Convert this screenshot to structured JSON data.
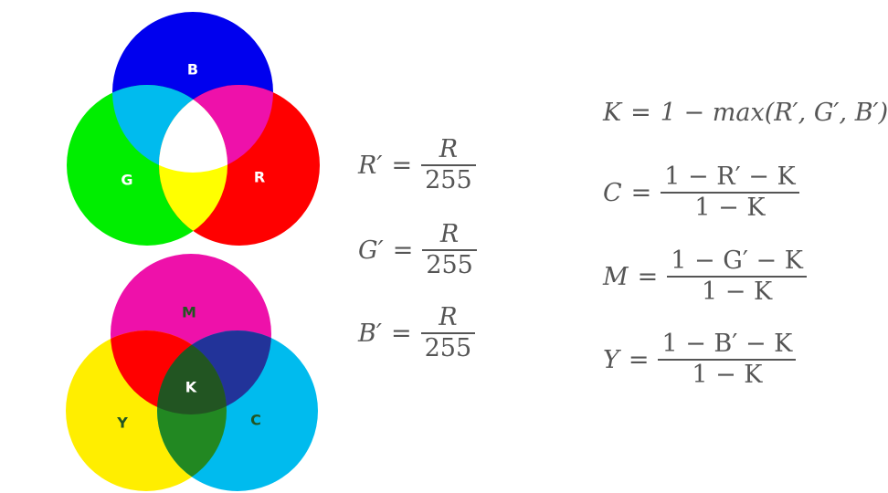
{
  "colors": {
    "blue": "#0000ee",
    "green": "#00ee00",
    "red": "#ff0000",
    "cyan_overlap": "#00bbee",
    "magenta_overlap": "#ee11aa",
    "yellow_overlap": "#ffff00",
    "white_center": "#ffffff",
    "magenta": "#ee11aa",
    "yellow": "#ffee00",
    "cyan": "#00bbee",
    "mr_overlap": "#ff0000",
    "mc_overlap": "#223399",
    "yc_overlap": "#228822",
    "black_center": "#225522"
  },
  "rgb_diagram": {
    "label_b": "B",
    "label_g": "G",
    "label_r": "R"
  },
  "cmyk_diagram": {
    "label_m": "M",
    "label_y": "Y",
    "label_c": "C",
    "label_k": "K"
  },
  "normalize": {
    "r": {
      "lhs": "R′",
      "eq": "=",
      "num": "R",
      "den": "255"
    },
    "g": {
      "lhs": "G′",
      "eq": "=",
      "num": "R",
      "den": "255"
    },
    "b": {
      "lhs": "B′",
      "eq": "=",
      "num": "R",
      "den": "255"
    }
  },
  "cmyk_formulas": {
    "k": {
      "lhs": "K",
      "eq": "=",
      "rhs": "1 − max(R′, G′, B′)"
    },
    "c": {
      "lhs": "C",
      "eq": "=",
      "num": "1 − R′ − K",
      "den": "1 − K"
    },
    "m": {
      "lhs": "M",
      "eq": "=",
      "num": "1 − G′ − K",
      "den": "1 − K"
    },
    "y": {
      "lhs": "Y",
      "eq": "=",
      "num": "1 − B′ − K",
      "den": "1 − K"
    }
  }
}
